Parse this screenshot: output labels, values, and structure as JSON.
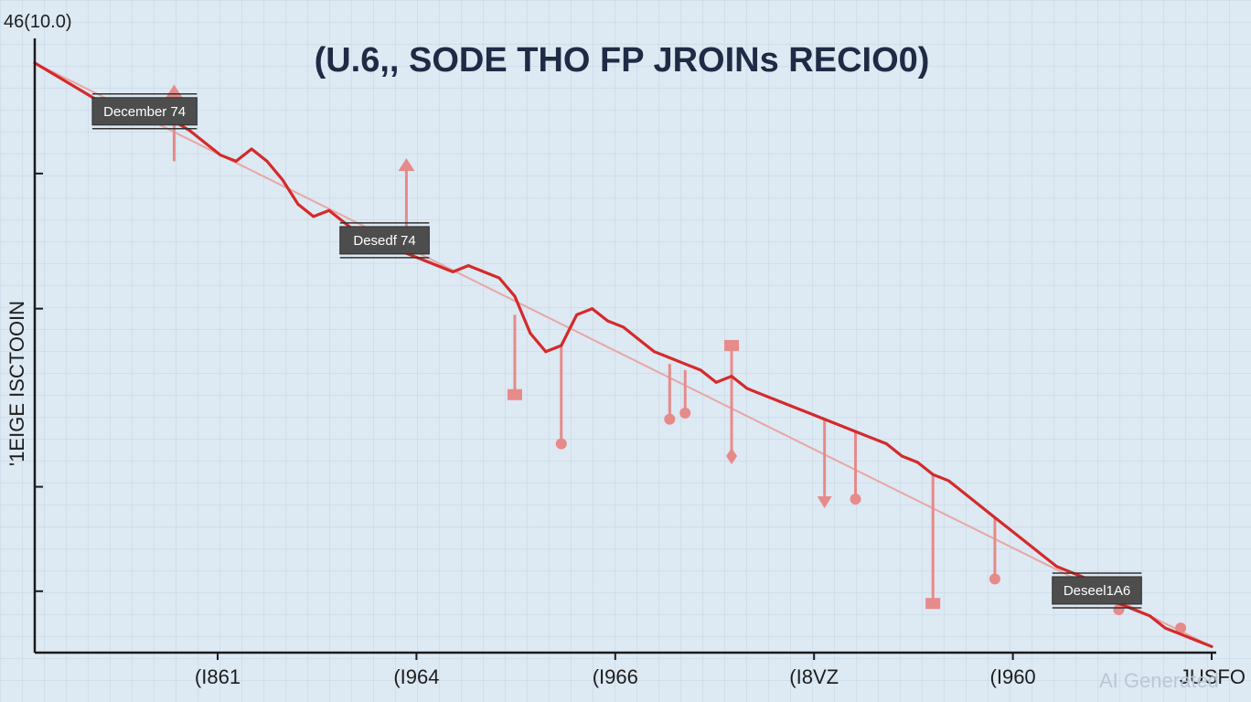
{
  "chart_data": {
    "type": "line",
    "title": "(U.6,, SODE THO FP JROINs RECIO0)",
    "y_top_label": "46(10.0)",
    "ylabel": "'1EIGE ISCTOOIN",
    "x_tick_labels": [
      "(I861",
      "(I964",
      "(I966",
      "(I8VZ",
      "(I960",
      "JUSFO"
    ],
    "watermark": "AI Generated",
    "grid": true,
    "colors": {
      "line": "#d42a2a",
      "marker": "#e78a8a",
      "trend": "#e9a6a6",
      "axis": "#1a1a1a",
      "label_box": "#4d4d4d",
      "background": "#dde9f3"
    },
    "ylim": [
      0,
      100
    ],
    "series": [
      {
        "values": [
          [
            0,
            96
          ],
          [
            2,
            93
          ],
          [
            4,
            90
          ],
          [
            6,
            87
          ],
          [
            7,
            89
          ],
          [
            8,
            88
          ],
          [
            10,
            85
          ],
          [
            12,
            81
          ],
          [
            13,
            80
          ],
          [
            14,
            82
          ],
          [
            15,
            80
          ],
          [
            16,
            77
          ],
          [
            17,
            73
          ],
          [
            18,
            71
          ],
          [
            19,
            72
          ],
          [
            20,
            70
          ],
          [
            21,
            68
          ],
          [
            22,
            67
          ],
          [
            23,
            66
          ],
          [
            24,
            65
          ],
          [
            25,
            64
          ],
          [
            26,
            63
          ],
          [
            27,
            62
          ],
          [
            28,
            63
          ],
          [
            29,
            62
          ],
          [
            30,
            61
          ],
          [
            31,
            58
          ],
          [
            32,
            52
          ],
          [
            33,
            49
          ],
          [
            34,
            50
          ],
          [
            35,
            55
          ],
          [
            36,
            56
          ],
          [
            37,
            54
          ],
          [
            38,
            53
          ],
          [
            39,
            51
          ],
          [
            40,
            49
          ],
          [
            41,
            48
          ],
          [
            42,
            47
          ],
          [
            43,
            46
          ],
          [
            44,
            44
          ],
          [
            45,
            45
          ],
          [
            46,
            43
          ],
          [
            47,
            42
          ],
          [
            48,
            41
          ],
          [
            49,
            40
          ],
          [
            50,
            39
          ],
          [
            51,
            38
          ],
          [
            52,
            37
          ],
          [
            53,
            36
          ],
          [
            54,
            35
          ],
          [
            55,
            34
          ],
          [
            56,
            32
          ],
          [
            57,
            31
          ],
          [
            58,
            29
          ],
          [
            59,
            28
          ],
          [
            60,
            26
          ],
          [
            61,
            24
          ],
          [
            62,
            22
          ],
          [
            63,
            20
          ],
          [
            64,
            18
          ],
          [
            65,
            16
          ],
          [
            66,
            14
          ],
          [
            67,
            13
          ],
          [
            68,
            12
          ],
          [
            69,
            10
          ],
          [
            70,
            8
          ],
          [
            71,
            7
          ],
          [
            72,
            6
          ],
          [
            73,
            4
          ],
          [
            74,
            3
          ],
          [
            75,
            2
          ],
          [
            76,
            1
          ]
        ]
      }
    ],
    "trend": [
      [
        0,
        96
      ],
      [
        76,
        1
      ]
    ],
    "annotations": [
      {
        "text": "December 74",
        "x": 10,
        "y": 85
      },
      {
        "text": "Desedf 74",
        "x": 25,
        "y": 64
      },
      {
        "text": "Deseel1A6",
        "x": 71,
        "y": 7
      }
    ],
    "spikes": [
      {
        "x": 9,
        "from": 80,
        "to": 91,
        "marker": "arrow-up"
      },
      {
        "x": 24,
        "from": 66,
        "to": 79,
        "marker": "arrow-up"
      },
      {
        "x": 31,
        "from": 55,
        "to": 42,
        "marker": "square"
      },
      {
        "x": 34,
        "from": 50,
        "to": 34,
        "marker": "circle"
      },
      {
        "x": 41,
        "from": 47,
        "to": 38,
        "marker": "circle"
      },
      {
        "x": 42,
        "from": 46,
        "to": 39,
        "marker": "circle"
      },
      {
        "x": 45,
        "from": 45,
        "to": 50,
        "marker": "square"
      },
      {
        "x": 45,
        "from": 45,
        "to": 32,
        "marker": "diamond"
      },
      {
        "x": 51,
        "from": 38,
        "to": 25,
        "marker": "arrow-down"
      },
      {
        "x": 53,
        "from": 36,
        "to": 25,
        "marker": "circle"
      },
      {
        "x": 58,
        "from": 29,
        "to": 8,
        "marker": "square"
      },
      {
        "x": 62,
        "from": 22,
        "to": 12,
        "marker": "circle"
      },
      {
        "x": 70,
        "from": 9,
        "to": 7,
        "marker": "circle"
      },
      {
        "x": 74,
        "from": 3,
        "to": 4,
        "marker": "circle"
      }
    ]
  }
}
